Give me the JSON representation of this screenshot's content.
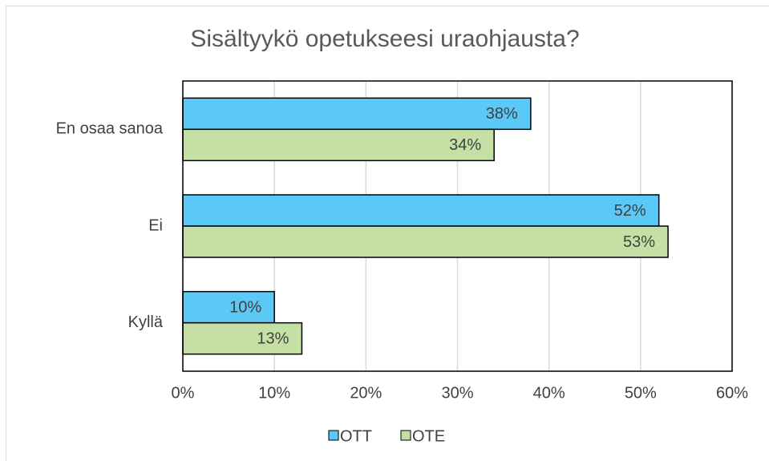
{
  "chart_data": {
    "type": "hbar",
    "title": "Sisältyykö opetukseesi uraohjausta?",
    "categories": [
      "En osaa sanoa",
      "Ei",
      "Kyllä"
    ],
    "series": [
      {
        "name": "OTT",
        "color": "#5bc8f5",
        "values": [
          38,
          52,
          10
        ],
        "value_labels": [
          "38%",
          "52%",
          "10%"
        ]
      },
      {
        "name": "OTE",
        "color": "#c5e0a5",
        "values": [
          34,
          53,
          13
        ],
        "value_labels": [
          "34%",
          "53%",
          "13%"
        ]
      }
    ],
    "xlim": [
      0,
      60
    ],
    "xticks": [
      {
        "value": 0,
        "label": "0%"
      },
      {
        "value": 10,
        "label": "10%"
      },
      {
        "value": 20,
        "label": "20%"
      },
      {
        "value": 30,
        "label": "30%"
      },
      {
        "value": 40,
        "label": "40%"
      },
      {
        "value": 50,
        "label": "50%"
      },
      {
        "value": 60,
        "label": "60%"
      }
    ],
    "grid": true,
    "legend": "bottom"
  }
}
